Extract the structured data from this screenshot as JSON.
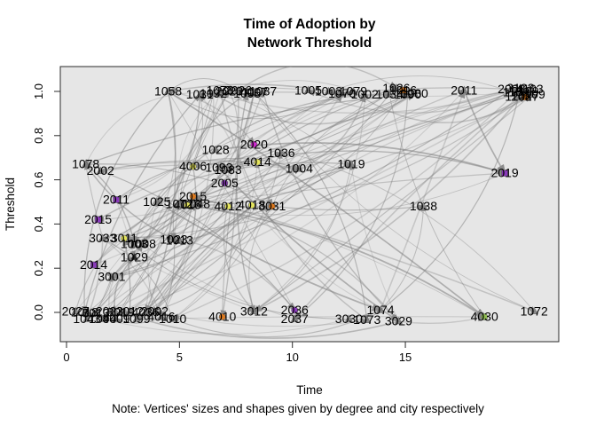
{
  "title": {
    "line1": "Time of Adoption by",
    "line2": "Network Threshold"
  },
  "note": "Note: Vertices' sizes and shapes given by degree and city respectively",
  "axes": {
    "x": {
      "label": "Time",
      "ticks": [
        "0",
        "5",
        "10",
        "15"
      ],
      "tick_values": [
        0,
        5,
        10,
        15
      ]
    },
    "y": {
      "label": "Threshold",
      "ticks": [
        "0.0",
        "0.2",
        "0.4",
        "0.6",
        "0.8",
        "1.0"
      ],
      "tick_values": [
        0.0,
        0.2,
        0.4,
        0.6,
        0.8,
        1.0
      ]
    }
  },
  "panel": {
    "background": "#E6E6E6",
    "border": "#2B2B2B"
  },
  "chart_data": {
    "type": "scatter",
    "subtype": "directed-network-over-axes",
    "title": "Time of Adoption by Network Threshold",
    "xlabel": "Time",
    "ylabel": "Threshold",
    "xlim": [
      -0.3,
      22.0
    ],
    "ylim": [
      -0.06,
      1.05
    ],
    "grid": false,
    "edges_visual": {
      "color": "#7D7D7D",
      "opacity": 0.35,
      "directed": true,
      "approx_count": 170
    },
    "nodes": [
      {
        "label": "1058",
        "time": 4.5,
        "threshold": 1.0
      },
      {
        "label": "1031",
        "time": 5.9,
        "threshold": 0.985
      },
      {
        "label": "1092",
        "time": 6.5,
        "threshold": 0.99
      },
      {
        "label": "1073",
        "time": 6.8,
        "threshold": 1.005
      },
      {
        "label": "2023",
        "time": 7.2,
        "threshold": 1.0
      },
      {
        "label": "2026",
        "time": 7.6,
        "threshold": 1.005
      },
      {
        "label": "1095",
        "time": 8.0,
        "threshold": 0.99
      },
      {
        "label": "4007",
        "time": 8.3,
        "threshold": 0.995
      },
      {
        "label": "1087",
        "time": 8.7,
        "threshold": 1.0
      },
      {
        "label": "1005",
        "time": 10.7,
        "threshold": 1.005
      },
      {
        "label": "1003",
        "time": 11.6,
        "threshold": 1.0
      },
      {
        "label": "1070",
        "time": 12.2,
        "threshold": 0.99
      },
      {
        "label": "1079",
        "time": 12.7,
        "threshold": 1.0
      },
      {
        "label": "1002",
        "time": 13.2,
        "threshold": 0.985
      },
      {
        "label": "1034",
        "time": 14.3,
        "threshold": 0.985
      },
      {
        "label": "1026",
        "time": 14.6,
        "threshold": 1.015
      },
      {
        "label": "1016",
        "time": 14.9,
        "threshold": 1.005,
        "color": "#E07818",
        "shape": "square"
      },
      {
        "label": "1090",
        "time": 15.1,
        "threshold": 0.985
      },
      {
        "label": "1080",
        "time": 15.4,
        "threshold": 0.99
      },
      {
        "label": "2011",
        "time": 17.6,
        "threshold": 1.005
      },
      {
        "label": "2008",
        "time": 19.7,
        "threshold": 1.01
      },
      {
        "label": "1102",
        "time": 19.9,
        "threshold": 0.995
      },
      {
        "label": "3103",
        "time": 20.1,
        "threshold": 1.015
      },
      {
        "label": "2109",
        "time": 20.3,
        "threshold": 1.0
      },
      {
        "label": "4103",
        "time": 20.5,
        "threshold": 1.01
      },
      {
        "label": "1108",
        "time": 20.0,
        "threshold": 0.975
      },
      {
        "label": "2027",
        "time": 20.3,
        "threshold": 0.975,
        "color": "#E07818",
        "shape": "square"
      },
      {
        "label": "1109",
        "time": 20.6,
        "threshold": 0.985
      },
      {
        "label": "1078",
        "time": 0.85,
        "threshold": 0.67
      },
      {
        "label": "2002",
        "time": 1.5,
        "threshold": 0.64
      },
      {
        "label": "1028",
        "time": 6.6,
        "threshold": 0.735
      },
      {
        "label": "4006",
        "time": 5.6,
        "threshold": 0.66,
        "color": "#E8E85A",
        "shape": "circle"
      },
      {
        "label": "1093",
        "time": 6.75,
        "threshold": 0.655
      },
      {
        "label": "1083",
        "time": 7.15,
        "threshold": 0.645
      },
      {
        "label": "2020",
        "time": 8.3,
        "threshold": 0.76,
        "color": "#CC22CC",
        "shape": "circle"
      },
      {
        "label": "1036",
        "time": 9.5,
        "threshold": 0.72
      },
      {
        "label": "4014",
        "time": 8.45,
        "threshold": 0.68,
        "color": "#E8E85A",
        "shape": "circle"
      },
      {
        "label": "1004",
        "time": 10.3,
        "threshold": 0.65
      },
      {
        "label": "1019",
        "time": 12.6,
        "threshold": 0.67
      },
      {
        "label": "2005",
        "time": 7.0,
        "threshold": 0.585,
        "color": "#8833BB",
        "shape": "circle"
      },
      {
        "label": "2019",
        "time": 19.4,
        "threshold": 0.63,
        "color": "#8833BB",
        "shape": "square"
      },
      {
        "label": "1038",
        "time": 15.8,
        "threshold": 0.48
      },
      {
        "label": "2011",
        "time": 2.2,
        "threshold": 0.51,
        "color": "#8833BB",
        "shape": "square"
      },
      {
        "label": "1025",
        "time": 4.0,
        "threshold": 0.5
      },
      {
        "label": "1012",
        "time": 5.0,
        "threshold": 0.49
      },
      {
        "label": "4016",
        "time": 5.35,
        "threshold": 0.485,
        "color": "#E8E85A",
        "shape": "circle"
      },
      {
        "label": "1048",
        "time": 5.75,
        "threshold": 0.49
      },
      {
        "label": "2015",
        "time": 5.6,
        "threshold": 0.525,
        "color": "#E07818",
        "shape": "circle"
      },
      {
        "label": "4012",
        "time": 7.15,
        "threshold": 0.48,
        "color": "#E8E85A",
        "shape": "circle"
      },
      {
        "label": "4018",
        "time": 8.2,
        "threshold": 0.485,
        "color": "#E8E85A",
        "shape": "circle"
      },
      {
        "label": "3031",
        "time": 9.1,
        "threshold": 0.48,
        "color": "#E07818",
        "shape": "circle"
      },
      {
        "label": "2015",
        "time": 1.4,
        "threshold": 0.42,
        "color": "#8833BB",
        "shape": "square"
      },
      {
        "label": "3033",
        "time": 1.6,
        "threshold": 0.335
      },
      {
        "label": "3011",
        "time": 2.55,
        "threshold": 0.335,
        "color": "#E8E85A",
        "shape": "circle"
      },
      {
        "label": "1003",
        "time": 3.0,
        "threshold": 0.31
      },
      {
        "label": "1008",
        "time": 3.35,
        "threshold": 0.31
      },
      {
        "label": "1023",
        "time": 4.75,
        "threshold": 0.33
      },
      {
        "label": "1013",
        "time": 5.0,
        "threshold": 0.325
      },
      {
        "label": "1029",
        "time": 3.0,
        "threshold": 0.25,
        "color": "#111111",
        "shape": "triangle"
      },
      {
        "label": "2014",
        "time": 1.2,
        "threshold": 0.215,
        "color": "#8833BB",
        "shape": "square"
      },
      {
        "label": "3001",
        "time": 2.0,
        "threshold": 0.16
      },
      {
        "label": "2027",
        "time": 0.4,
        "threshold": 0.005
      },
      {
        "label": "1018",
        "time": 0.8,
        "threshold": 0.0
      },
      {
        "label": "1043",
        "time": 0.9,
        "threshold": -0.03
      },
      {
        "label": "3013",
        "time": 1.3,
        "threshold": -0.005
      },
      {
        "label": "1094",
        "time": 1.6,
        "threshold": -0.03
      },
      {
        "label": "2023",
        "time": 1.9,
        "threshold": 0.005
      },
      {
        "label": "4009",
        "time": 2.2,
        "threshold": -0.03
      },
      {
        "label": "3019",
        "time": 2.4,
        "threshold": 0.0
      },
      {
        "label": "2012",
        "time": 2.8,
        "threshold": 0.005
      },
      {
        "label": "1099",
        "time": 3.1,
        "threshold": -0.03
      },
      {
        "label": "4036",
        "time": 3.5,
        "threshold": 0.0
      },
      {
        "label": "2002",
        "time": 3.9,
        "threshold": 0.005
      },
      {
        "label": "4016",
        "time": 4.2,
        "threshold": -0.02
      },
      {
        "label": "1010",
        "time": 4.7,
        "threshold": -0.03
      },
      {
        "label": "4010",
        "time": 6.9,
        "threshold": -0.02,
        "color": "#E07818",
        "shape": "circle"
      },
      {
        "label": "3012",
        "time": 8.3,
        "threshold": 0.005
      },
      {
        "label": "2036",
        "time": 10.1,
        "threshold": 0.01,
        "color": "#8833BB",
        "shape": "circle"
      },
      {
        "label": "2037",
        "time": 10.1,
        "threshold": -0.03
      },
      {
        "label": "3030",
        "time": 12.5,
        "threshold": -0.03
      },
      {
        "label": "1073",
        "time": 13.3,
        "threshold": -0.035
      },
      {
        "label": "1074",
        "time": 13.9,
        "threshold": 0.01
      },
      {
        "label": "3029",
        "time": 14.7,
        "threshold": -0.04
      },
      {
        "label": "4030",
        "time": 18.5,
        "threshold": -0.02,
        "color": "#8FBF4D",
        "shape": "circle"
      },
      {
        "label": "1072",
        "time": 20.7,
        "threshold": 0.005
      }
    ]
  }
}
